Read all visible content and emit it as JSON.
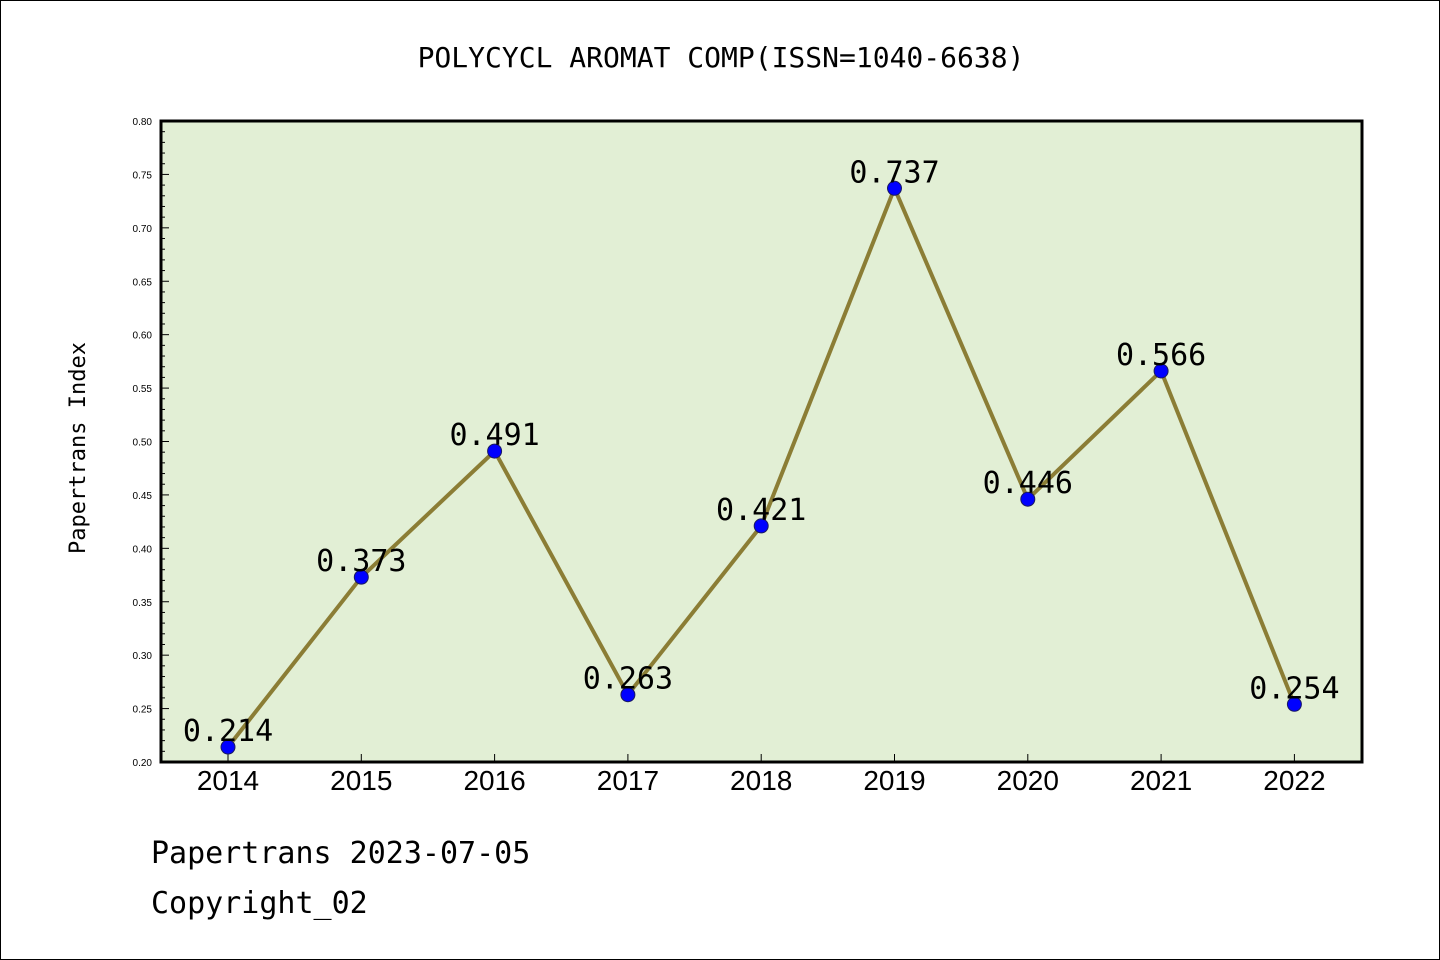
{
  "chart_data": {
    "type": "line",
    "title": "POLYCYCL AROMAT COMP(ISSN=1040-6638)",
    "ylabel": "Papertrans Index",
    "xlabel": "",
    "categories": [
      "2014",
      "2015",
      "2016",
      "2017",
      "2018",
      "2019",
      "2020",
      "2021",
      "2022"
    ],
    "values": [
      0.214,
      0.373,
      0.491,
      0.263,
      0.421,
      0.737,
      0.446,
      0.566,
      0.254
    ],
    "data_labels": [
      "0.214",
      "0.373",
      "0.491",
      "0.263",
      "0.421",
      "0.737",
      "0.446",
      "0.566",
      "0.254"
    ],
    "ylim": [
      0.2,
      0.8
    ],
    "yticks": [
      "0.20",
      "0.25",
      "0.30",
      "0.35",
      "0.40",
      "0.45",
      "0.50",
      "0.55",
      "0.60",
      "0.65",
      "0.70",
      "0.75",
      "0.80"
    ],
    "grid": false,
    "colors": {
      "plot_background": "#e2efd5",
      "line": "#8b7d35",
      "marker": "#0000ff"
    }
  },
  "footer": {
    "date_text": "Papertrans 2023-07-05",
    "copyright_text": "Copyright_02"
  }
}
